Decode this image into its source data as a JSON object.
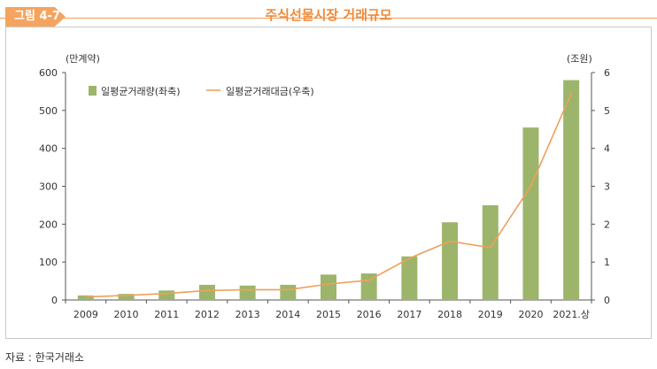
{
  "figure": {
    "tag": "그림 4-7",
    "title": "주식선물시장 거래규모",
    "source": "자료 : 한국거래소"
  },
  "chart_data": {
    "type": "bar",
    "categories": [
      "2009",
      "2010",
      "2011",
      "2012",
      "2013",
      "2014",
      "2015",
      "2016",
      "2017",
      "2018",
      "2019",
      "2020",
      "2021.상"
    ],
    "series": [
      {
        "name": "일평균거래량(좌축)",
        "type": "bar",
        "axis": "left",
        "color": "#9cb56b",
        "values": [
          12,
          16,
          25,
          40,
          38,
          40,
          67,
          70,
          115,
          205,
          250,
          455,
          580
        ]
      },
      {
        "name": "일평균거래대금(우축)",
        "type": "line",
        "axis": "right",
        "color": "#f0a05a",
        "values": [
          0.08,
          0.12,
          0.17,
          0.25,
          0.27,
          0.27,
          0.42,
          0.52,
          1.1,
          1.55,
          1.38,
          3.0,
          5.45
        ]
      }
    ],
    "y_left": {
      "label": "(만계약)",
      "min": 0,
      "max": 600,
      "ticks": [
        0,
        100,
        200,
        300,
        400,
        500,
        600
      ]
    },
    "y_right": {
      "label": "(조원)",
      "min": 0,
      "max": 6,
      "ticks": [
        0,
        1,
        2,
        3,
        4,
        5,
        6
      ]
    },
    "legend": "top-left",
    "grid": false
  }
}
